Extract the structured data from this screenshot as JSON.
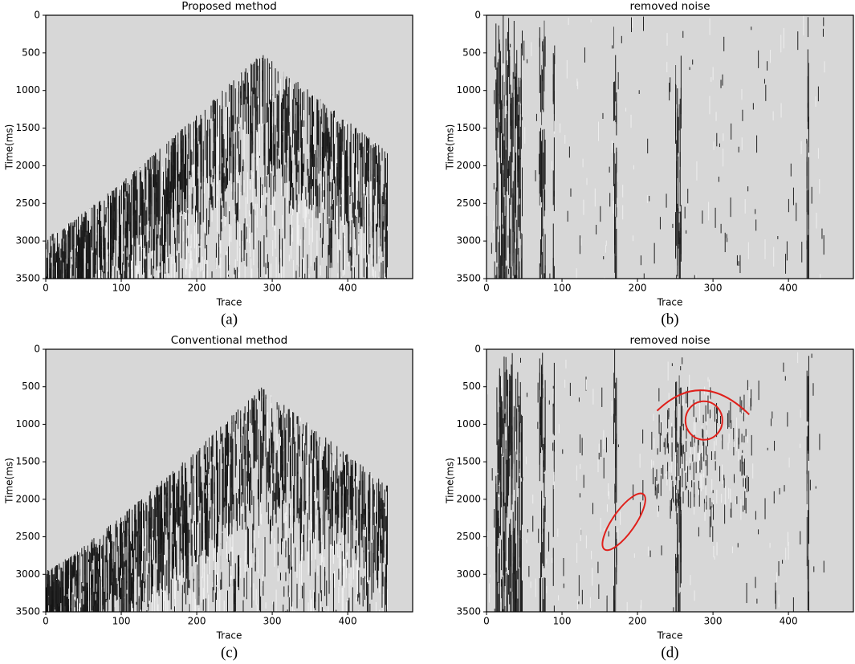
{
  "chart_data": [
    {
      "type": "image",
      "title": "Proposed method",
      "xlabel": "Trace",
      "ylabel": "Time(ms)",
      "caption": "(a)",
      "xlim": [
        0,
        486
      ],
      "ylim": [
        3500,
        0
      ],
      "xticks": [
        0,
        100,
        200,
        300,
        400
      ],
      "yticks": [
        0,
        500,
        1000,
        1500,
        2000,
        2500,
        3000,
        3500
      ]
    },
    {
      "type": "image",
      "title": "removed noise",
      "xlabel": "Trace",
      "ylabel": "Time(ms)",
      "caption": "(b)",
      "xlim": [
        0,
        486
      ],
      "ylim": [
        3500,
        0
      ],
      "xticks": [
        0,
        100,
        200,
        300,
        400
      ],
      "yticks": [
        0,
        500,
        1000,
        1500,
        2000,
        2500,
        3000,
        3500
      ]
    },
    {
      "type": "image",
      "title": "Conventional method",
      "xlabel": "Trace",
      "ylabel": "Time(ms)",
      "caption": "(c)",
      "xlim": [
        0,
        486
      ],
      "ylim": [
        3500,
        0
      ],
      "xticks": [
        0,
        100,
        200,
        300,
        400
      ],
      "yticks": [
        0,
        500,
        1000,
        1500,
        2000,
        2500,
        3000,
        3500
      ]
    },
    {
      "type": "image",
      "title": "removed noise",
      "xlabel": "Trace",
      "ylabel": "Time(ms)",
      "caption": "(d)",
      "xlim": [
        0,
        486
      ],
      "ylim": [
        3500,
        0
      ],
      "xticks": [
        0,
        100,
        200,
        300,
        400
      ],
      "yticks": [
        0,
        500,
        1000,
        1500,
        2000,
        2500,
        3000,
        3500
      ]
    }
  ]
}
